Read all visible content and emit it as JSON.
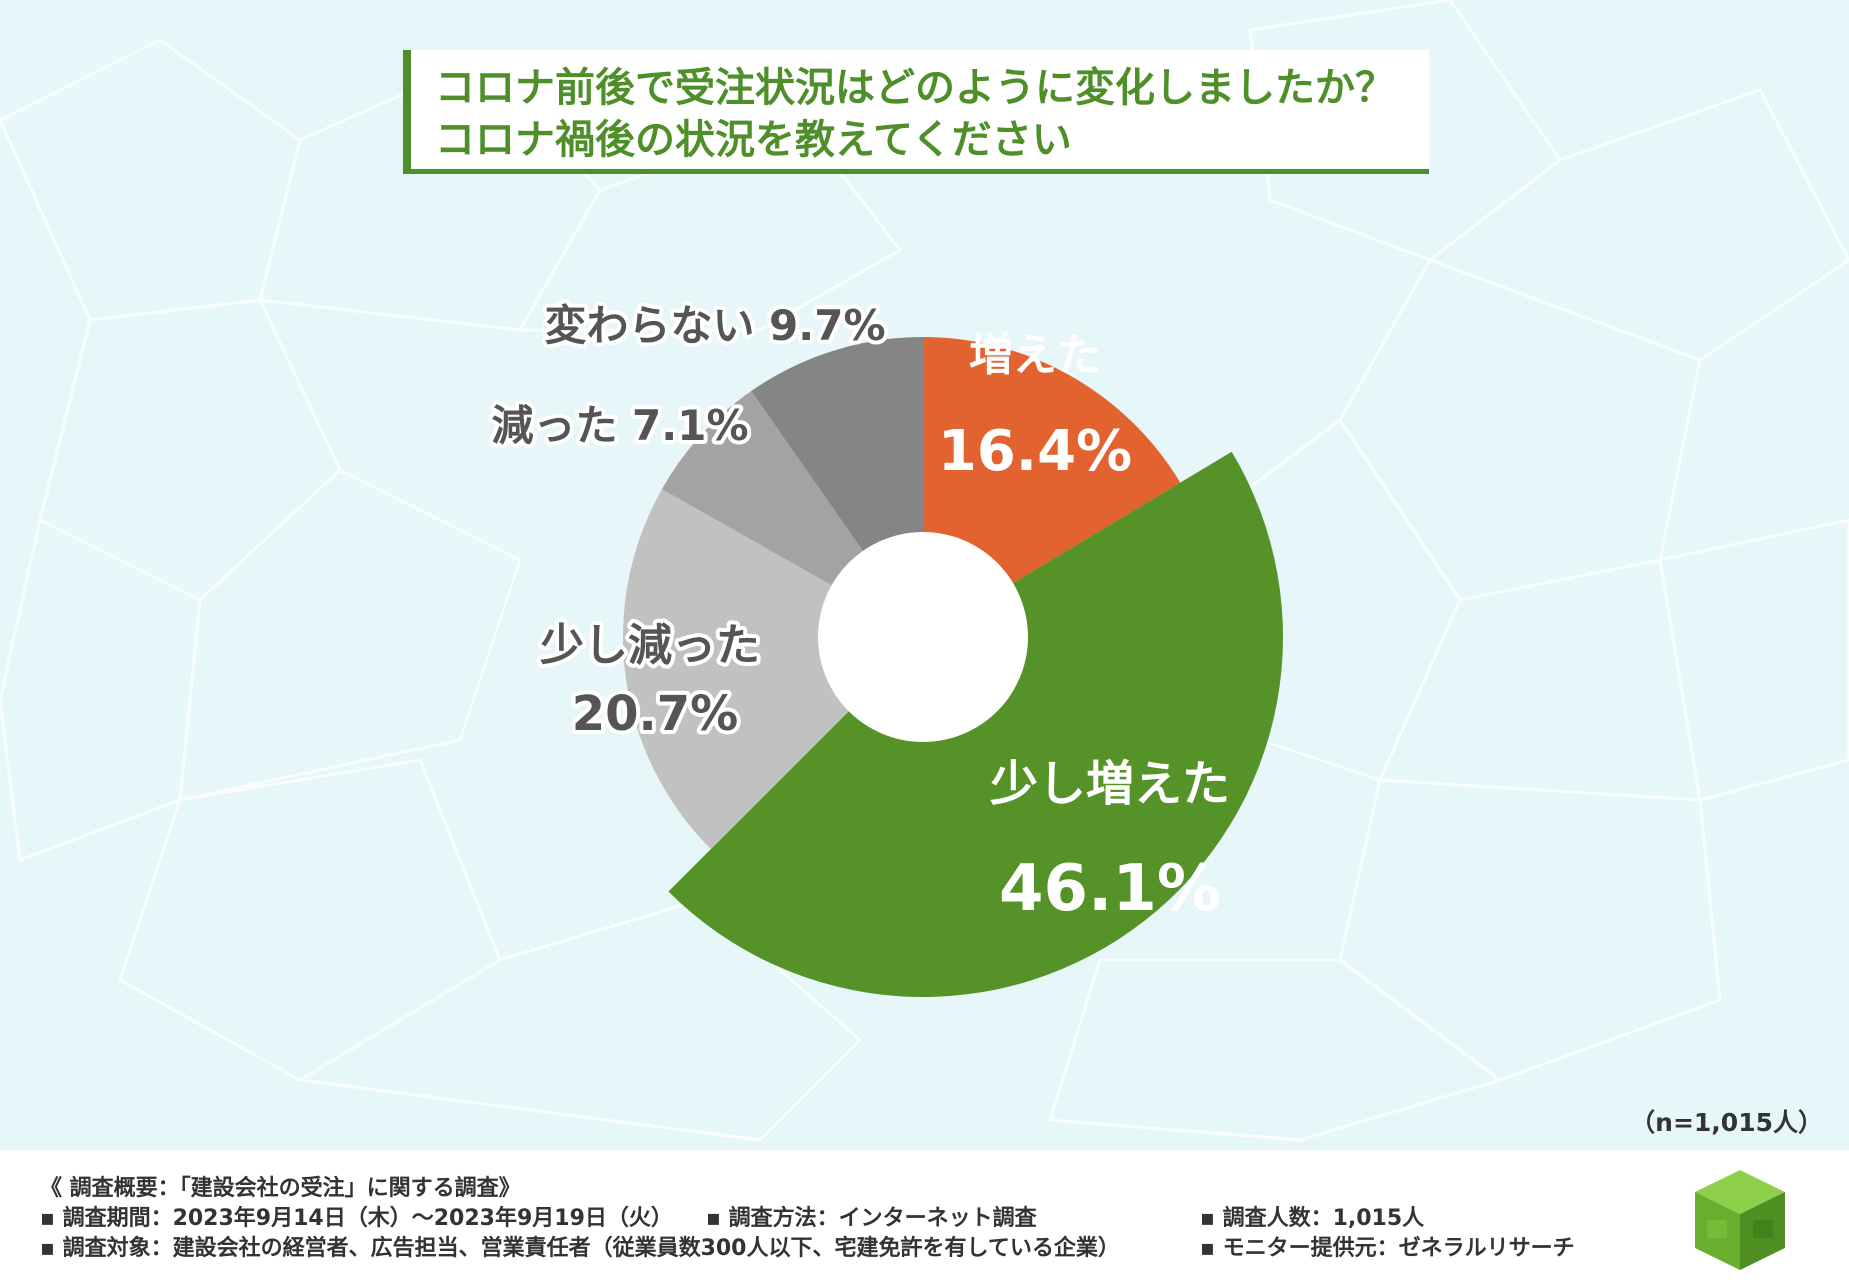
{
  "title": {
    "line1": "コロナ前後で受注状況はどのように変化しましたか？",
    "line2": "コロナ禍後の状況を教えてください"
  },
  "sample_note": "（n=1,015人）",
  "colors": {
    "increased": "#e36330",
    "slightly_increased": "#559227",
    "slightly_decreased": "#c1c1c1",
    "decreased": "#a3a3a3",
    "unchanged": "#858585",
    "title_green": "#4e8f2a"
  },
  "chart_data": {
    "type": "pie",
    "variant": "donut",
    "title": "コロナ前後で受注状況はどのように変化しましたか？ コロナ禍後の状況を教えてください",
    "unit": "%",
    "slices": [
      {
        "label": "増えた",
        "value": 16.4,
        "value_text": "16.4%",
        "color": "#e36330",
        "label_color": "#e36330"
      },
      {
        "label": "少し増えた",
        "value": 46.1,
        "value_text": "46.1%",
        "color": "#559227",
        "label_color": "#559227"
      },
      {
        "label": "少し減った",
        "value": 20.7,
        "value_text": "20.7%",
        "color": "#c1c1c1",
        "label_color": "#555555"
      },
      {
        "label": "減った",
        "value": 7.1,
        "value_text": "7.1%",
        "color": "#a3a3a3",
        "label_color": "#555555"
      },
      {
        "label": "変わらない",
        "value": 9.7,
        "value_text": "9.7%",
        "color": "#858585",
        "label_color": "#555555"
      }
    ]
  },
  "footer": {
    "heading": "《 調査概要：「建設会社の受注」に関する調査》",
    "period": "▪ 調査期間：2023年9月14日（木）～2023年9月19日（火）",
    "method": "▪ 調査方法：インターネット調査",
    "count": "▪ 調査人数：1,015人",
    "target": "▪ 調査対象：建設会社の経営者、広告担当、営業責任者（従業員数300人以下、宅建免許を有している企業）",
    "provider": "▪ モニター提供元：ゼネラルリサーチ"
  }
}
